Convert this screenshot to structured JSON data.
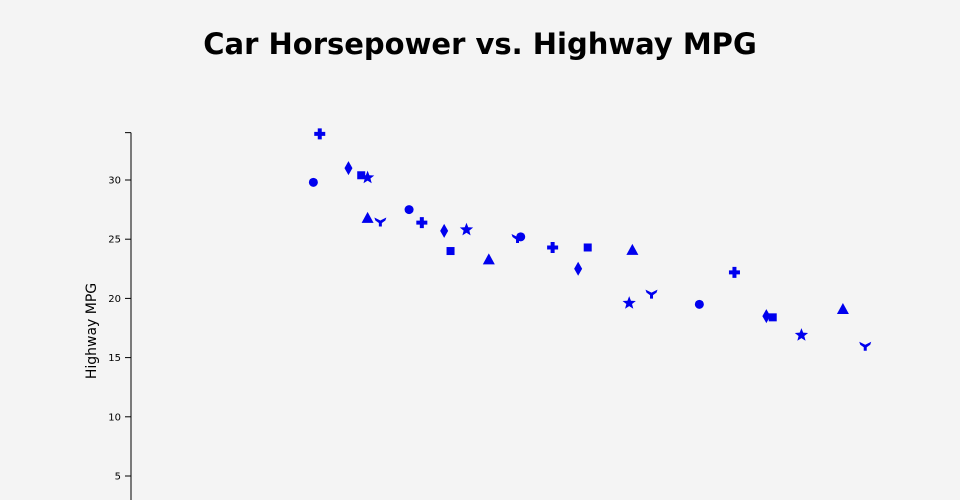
{
  "chart_data": {
    "type": "scatter",
    "title": "Car Horsepower vs. Highway MPG",
    "xlabel": "",
    "ylabel": "Highway MPG",
    "ylim": [
      0,
      34
    ],
    "yticks": [
      5,
      10,
      15,
      20,
      25,
      30
    ],
    "xlim": [
      60,
      260
    ],
    "grid": false,
    "marker_color": "#0000ee",
    "points": [
      {
        "x": 83,
        "y": 29.8,
        "marker": "circle"
      },
      {
        "x": 85,
        "y": 33.9,
        "marker": "plus"
      },
      {
        "x": 94,
        "y": 31.0,
        "marker": "diamond"
      },
      {
        "x": 98,
        "y": 30.4,
        "marker": "square"
      },
      {
        "x": 100,
        "y": 30.2,
        "marker": "star"
      },
      {
        "x": 100,
        "y": 26.8,
        "marker": "triangle"
      },
      {
        "x": 104,
        "y": 26.5,
        "marker": "tri"
      },
      {
        "x": 113,
        "y": 27.5,
        "marker": "circle"
      },
      {
        "x": 117,
        "y": 26.4,
        "marker": "plus"
      },
      {
        "x": 124,
        "y": 25.7,
        "marker": "diamond"
      },
      {
        "x": 126,
        "y": 24.0,
        "marker": "square"
      },
      {
        "x": 131,
        "y": 25.8,
        "marker": "star"
      },
      {
        "x": 138,
        "y": 23.3,
        "marker": "triangle"
      },
      {
        "x": 147,
        "y": 25.1,
        "marker": "tri"
      },
      {
        "x": 148,
        "y": 25.2,
        "marker": "circle"
      },
      {
        "x": 158,
        "y": 24.3,
        "marker": "plus"
      },
      {
        "x": 166,
        "y": 22.5,
        "marker": "diamond"
      },
      {
        "x": 169,
        "y": 24.3,
        "marker": "square"
      },
      {
        "x": 182,
        "y": 19.6,
        "marker": "star"
      },
      {
        "x": 183,
        "y": 24.1,
        "marker": "triangle"
      },
      {
        "x": 189,
        "y": 20.4,
        "marker": "tri"
      },
      {
        "x": 204,
        "y": 19.5,
        "marker": "circle"
      },
      {
        "x": 215,
        "y": 22.2,
        "marker": "plus"
      },
      {
        "x": 225,
        "y": 18.5,
        "marker": "diamond"
      },
      {
        "x": 227,
        "y": 18.4,
        "marker": "square"
      },
      {
        "x": 236,
        "y": 16.9,
        "marker": "star"
      },
      {
        "x": 249,
        "y": 19.1,
        "marker": "triangle"
      },
      {
        "x": 256,
        "y": 16.0,
        "marker": "tri"
      }
    ]
  }
}
